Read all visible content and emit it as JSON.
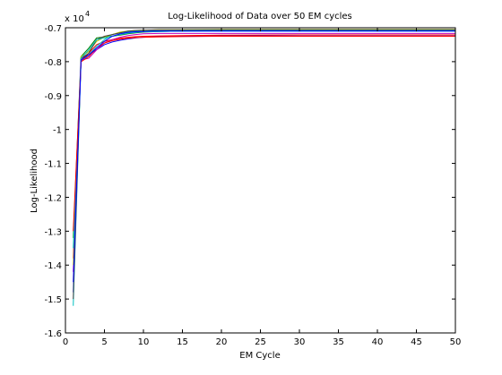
{
  "chart_data": {
    "type": "line",
    "title": "Log-Likelihood of Data over 50 EM cycles",
    "xlabel": "EM Cycle",
    "ylabel": "Log-Likelihood",
    "scale_note": {
      "base": "x 10",
      "exponent": "4"
    },
    "xlim": [
      0,
      50
    ],
    "ylim": [
      -16000,
      -7000
    ],
    "x_ticks": [
      0,
      5,
      10,
      15,
      20,
      25,
      30,
      35,
      40,
      45,
      50
    ],
    "x_tick_labels": [
      "0",
      "5",
      "10",
      "15",
      "20",
      "25",
      "30",
      "35",
      "40",
      "45",
      "50"
    ],
    "y_ticks": [
      -16000,
      -15000,
      -14000,
      -13000,
      -12000,
      -11000,
      -10000,
      -9000,
      -8000,
      -7000
    ],
    "y_tick_labels": [
      "-1.6",
      "-1.5",
      "-1.4",
      "-1.3",
      "-1.2",
      "-1.1",
      "-1",
      "-0.9",
      "-0.8",
      "-0.7"
    ],
    "grid": false,
    "legend": false,
    "series": [
      {
        "color": "#0000ff",
        "x": [
          1,
          2,
          3,
          4,
          5,
          6,
          7,
          8,
          9,
          10,
          12,
          15,
          20,
          30,
          40,
          50
        ],
        "y": [
          -14800,
          -7900,
          -7800,
          -7650,
          -7500,
          -7420,
          -7370,
          -7330,
          -7300,
          -7280,
          -7260,
          -7240,
          -7230,
          -7220,
          -7220,
          -7220
        ]
      },
      {
        "color": "#008000",
        "x": [
          1,
          2,
          3,
          4,
          5,
          6,
          7,
          8,
          9,
          10,
          12,
          15,
          20,
          30,
          40,
          50
        ],
        "y": [
          -13200,
          -7850,
          -7600,
          -7300,
          -7270,
          -7250,
          -7220,
          -7180,
          -7150,
          -7130,
          -7110,
          -7100,
          -7090,
          -7080,
          -7080,
          -7080
        ]
      },
      {
        "color": "#ff0000",
        "x": [
          1,
          2,
          3,
          4,
          5,
          6,
          7,
          8,
          9,
          10,
          12,
          15,
          20,
          30,
          40,
          50
        ],
        "y": [
          -13800,
          -7950,
          -7750,
          -7500,
          -7400,
          -7350,
          -7310,
          -7280,
          -7260,
          -7250,
          -7240,
          -7230,
          -7220,
          -7210,
          -7210,
          -7210
        ]
      },
      {
        "color": "#00bfbf",
        "x": [
          1,
          2,
          3,
          4,
          5,
          6,
          7,
          8,
          9,
          10,
          12,
          15,
          20,
          30,
          40,
          50
        ],
        "y": [
          -15200,
          -8000,
          -7800,
          -7550,
          -7350,
          -7200,
          -7150,
          -7120,
          -7100,
          -7100,
          -7090,
          -7080,
          -7080,
          -7080,
          -7080,
          -7080
        ]
      },
      {
        "color": "#bf00bf",
        "x": [
          1,
          2,
          3,
          4,
          5,
          6,
          7,
          8,
          9,
          10,
          12,
          15,
          20,
          30,
          40,
          50
        ],
        "y": [
          -14200,
          -7950,
          -7900,
          -7650,
          -7450,
          -7350,
          -7280,
          -7230,
          -7200,
          -7180,
          -7170,
          -7170,
          -7170,
          -7170,
          -7170,
          -7170
        ]
      },
      {
        "color": "#bfbf00",
        "x": [
          1,
          2,
          3,
          4,
          5,
          6,
          7,
          8,
          9,
          10,
          12,
          15,
          20,
          30,
          40,
          50
        ],
        "y": [
          -14000,
          -7850,
          -7700,
          -7400,
          -7280,
          -7200,
          -7130,
          -7100,
          -7080,
          -7070,
          -7060,
          -7060,
          -7050,
          -7050,
          -7050,
          -7050
        ]
      },
      {
        "color": "#404040",
        "x": [
          1,
          2,
          3,
          4,
          5,
          6,
          7,
          8,
          9,
          10,
          12,
          15,
          20,
          30,
          40,
          50
        ],
        "y": [
          -15000,
          -7900,
          -7750,
          -7350,
          -7250,
          -7200,
          -7150,
          -7100,
          -7080,
          -7070,
          -7060,
          -7060,
          -7060,
          -7060,
          -7060,
          -7060
        ]
      },
      {
        "color": "#00bfbf",
        "x": [
          1,
          2,
          3,
          4,
          5,
          6,
          7,
          8,
          9,
          10,
          12,
          15,
          20,
          30,
          40,
          50
        ],
        "y": [
          -13500,
          -7900,
          -7650,
          -7350,
          -7300,
          -7250,
          -7200,
          -7160,
          -7140,
          -7120,
          -7110,
          -7100,
          -7100,
          -7100,
          -7100,
          -7100
        ]
      },
      {
        "color": "#ff0000",
        "x": [
          1,
          2,
          3,
          4,
          5,
          6,
          7,
          8,
          9,
          10,
          12,
          15,
          20,
          30,
          40,
          50
        ],
        "y": [
          -13000,
          -8000,
          -7850,
          -7600,
          -7450,
          -7380,
          -7340,
          -7310,
          -7290,
          -7280,
          -7270,
          -7260,
          -7250,
          -7250,
          -7250,
          -7250
        ]
      },
      {
        "color": "#0000ff",
        "x": [
          1,
          2,
          3,
          4,
          5,
          6,
          7,
          8,
          9,
          10,
          12,
          15,
          20,
          30,
          40,
          50
        ],
        "y": [
          -14500,
          -7950,
          -7800,
          -7600,
          -7400,
          -7250,
          -7180,
          -7140,
          -7120,
          -7110,
          -7100,
          -7100,
          -7100,
          -7100,
          -7100,
          -7100
        ]
      }
    ]
  }
}
